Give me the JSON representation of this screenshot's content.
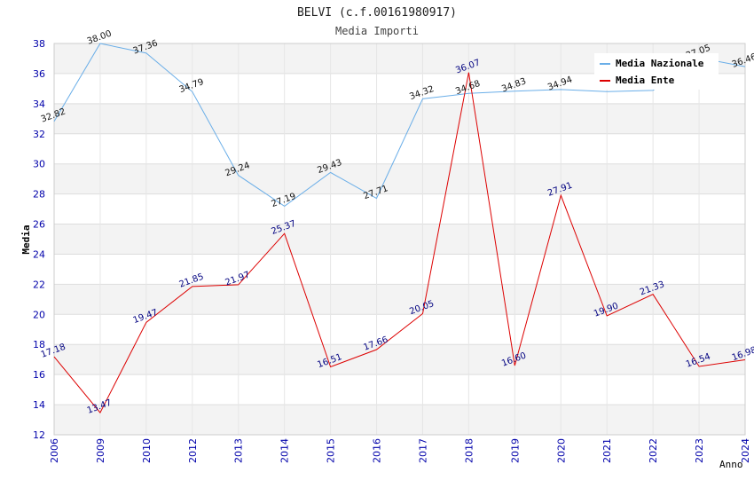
{
  "chart_data": {
    "type": "line",
    "title": "BELVI (c.f.00161980917)",
    "subtitle": "Media Importi",
    "xlabel": "Anno",
    "ylabel": "Media",
    "ylim": [
      12,
      38
    ],
    "yticks": [
      "12",
      "14",
      "16",
      "18",
      "20",
      "22",
      "24",
      "26",
      "28",
      "30",
      "32",
      "34",
      "36",
      "38"
    ],
    "categories": [
      "2006",
      "2009",
      "2010",
      "2012",
      "2013",
      "2014",
      "2015",
      "2016",
      "2017",
      "2018",
      "2019",
      "2020",
      "2021",
      "2022",
      "2023",
      "2024"
    ],
    "legend_position": "top-right",
    "grid": true,
    "series": [
      {
        "name": "Media Nazionale",
        "color": "#6aaee8",
        "values": [
          32.82,
          38.0,
          37.36,
          34.79,
          29.24,
          27.19,
          29.43,
          27.71,
          34.32,
          34.68,
          34.83,
          34.94,
          34.8,
          34.88,
          37.05,
          36.46
        ],
        "labels": [
          "32.82",
          "38.00",
          "37.36",
          "34.79",
          "29.24",
          "27.19",
          "29.43",
          "27.71",
          "34.32",
          "34.68",
          "34.83",
          "34.94",
          "",
          "",
          "37.05",
          "36.46"
        ]
      },
      {
        "name": "Media Ente",
        "color": "#dd0000",
        "values": [
          17.18,
          13.47,
          19.47,
          21.85,
          21.97,
          25.37,
          16.51,
          17.66,
          20.05,
          36.07,
          16.6,
          27.91,
          19.9,
          21.33,
          16.54,
          16.98
        ],
        "labels": [
          "17.18",
          "13.47",
          "19.47",
          "21.85",
          "21.97",
          "25.37",
          "16.51",
          "17.66",
          "20.05",
          "36.07",
          "16.60",
          "27.91",
          "19.90",
          "21.33",
          "16.54",
          "16.98"
        ]
      }
    ]
  }
}
